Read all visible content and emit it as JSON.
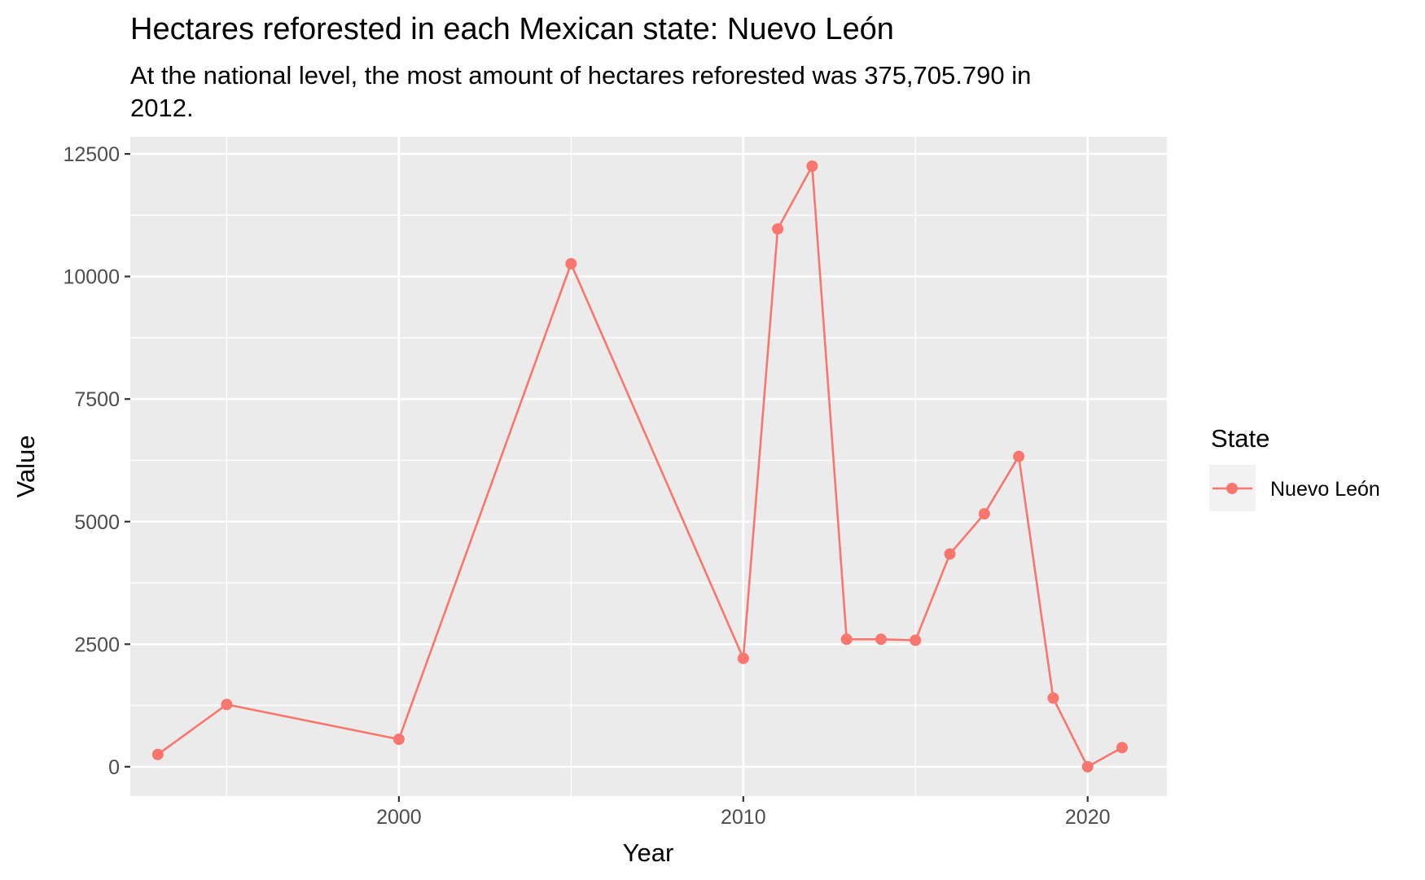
{
  "chart_data": {
    "type": "line",
    "title": "Hectares reforested in each Mexican state: Nuevo León",
    "subtitle_lines": [
      "At the national level, the most amount of hectares reforested was 375,705.790 in",
      "2012."
    ],
    "xlabel": "Year",
    "ylabel": "Value",
    "x_ticks": [
      2000,
      2010,
      2020
    ],
    "y_ticks": [
      0,
      2500,
      5000,
      7500,
      10000,
      12500
    ],
    "xlim": [
      1992.2,
      2022.3
    ],
    "ylim": [
      -600,
      12850
    ],
    "grid": true,
    "legend": {
      "title": "State",
      "position": "right"
    },
    "series": [
      {
        "name": "Nuevo León",
        "color": "#F8766D",
        "x": [
          1993,
          1995,
          2000,
          2005,
          2010,
          2011,
          2012,
          2013,
          2014,
          2015,
          2016,
          2017,
          2018,
          2019,
          2020,
          2021
        ],
        "y": [
          250,
          1270,
          560,
          10260,
          2210,
          10970,
          12250,
          2600,
          2600,
          2580,
          4340,
          5160,
          6330,
          1400,
          0,
          390
        ]
      }
    ]
  }
}
